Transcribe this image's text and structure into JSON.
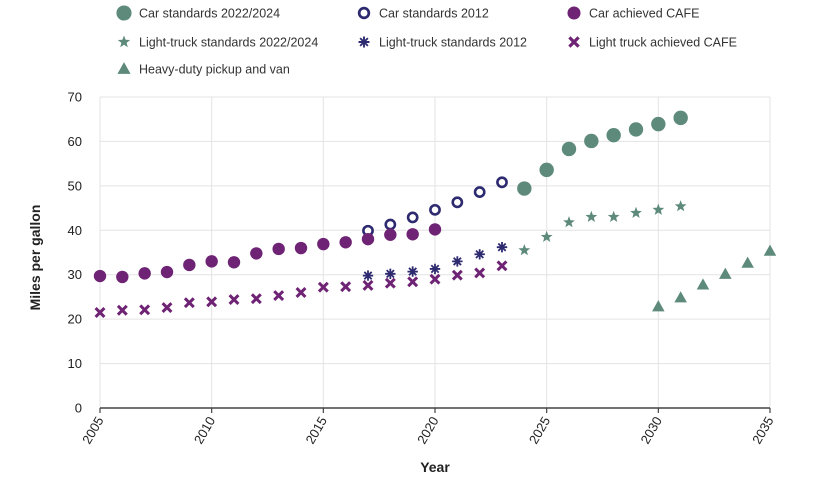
{
  "chart_data": {
    "type": "scatter",
    "title": "",
    "xlabel": "Year",
    "ylabel": "Miles per gallon",
    "xlim": [
      2005,
      2035
    ],
    "ylim": [
      0,
      70
    ],
    "x_ticks": [
      2005,
      2010,
      2015,
      2020,
      2025,
      2030,
      2035
    ],
    "y_ticks": [
      0,
      10,
      20,
      30,
      40,
      50,
      60,
      70
    ],
    "grid": true,
    "legend_position": "top",
    "colors": {
      "green": "#5e8a7c",
      "navy": "#2e2a70",
      "purple": "#6e2374"
    },
    "series": [
      {
        "name": "Car standards 2022/2024",
        "marker": "circle-filled",
        "color": "#5e8a7c",
        "x": [
          2024,
          2025,
          2026,
          2027,
          2028,
          2029,
          2030,
          2031
        ],
        "y": [
          49.4,
          53.6,
          58.3,
          60.1,
          61.4,
          62.7,
          63.9,
          65.3
        ]
      },
      {
        "name": "Car standards 2012",
        "marker": "circle-open",
        "color": "#2e2a70",
        "x": [
          2017,
          2018,
          2019,
          2020,
          2021,
          2022,
          2023
        ],
        "y": [
          39.9,
          41.3,
          42.9,
          44.6,
          46.3,
          48.6,
          50.8
        ]
      },
      {
        "name": "Car achieved CAFE",
        "marker": "circle-filled",
        "color": "#6e2374",
        "x": [
          2005,
          2006,
          2007,
          2008,
          2009,
          2010,
          2011,
          2012,
          2013,
          2014,
          2015,
          2016,
          2017,
          2018,
          2019,
          2020
        ],
        "y": [
          29.7,
          29.5,
          30.3,
          30.6,
          32.2,
          33.0,
          32.8,
          34.8,
          35.8,
          36.0,
          36.9,
          37.3,
          38.0,
          39.0,
          39.1,
          40.2
        ]
      },
      {
        "name": "Light-truck standards 2022/2024",
        "marker": "star",
        "color": "#5e8a7c",
        "x": [
          2024,
          2025,
          2026,
          2027,
          2028,
          2029,
          2030,
          2031
        ],
        "y": [
          35.5,
          38.5,
          41.8,
          43.0,
          43.0,
          43.9,
          44.6,
          45.4
        ]
      },
      {
        "name": "Light-truck standards 2012",
        "marker": "asterisk",
        "color": "#2e2a70",
        "x": [
          2017,
          2018,
          2019,
          2020,
          2021,
          2022,
          2023
        ],
        "y": [
          29.8,
          30.2,
          30.7,
          31.3,
          33.0,
          34.6,
          36.2
        ]
      },
      {
        "name": "Light truck achieved CAFE",
        "marker": "x",
        "color": "#6e2374",
        "x": [
          2005,
          2006,
          2007,
          2008,
          2009,
          2010,
          2011,
          2012,
          2013,
          2014,
          2015,
          2016,
          2017,
          2018,
          2019,
          2020,
          2021,
          2022,
          2023
        ],
        "y": [
          21.5,
          22.0,
          22.1,
          22.6,
          23.7,
          23.9,
          24.4,
          24.6,
          25.3,
          26.0,
          27.2,
          27.3,
          27.6,
          28.1,
          28.4,
          29.0,
          29.9,
          30.4,
          32.0
        ]
      },
      {
        "name": "Heavy-duty pickup and van",
        "marker": "triangle",
        "color": "#5e8a7c",
        "x": [
          2030,
          2031,
          2032,
          2033,
          2034,
          2035
        ],
        "y": [
          22.8,
          24.8,
          27.7,
          30.1,
          32.6,
          35.3
        ]
      }
    ]
  }
}
